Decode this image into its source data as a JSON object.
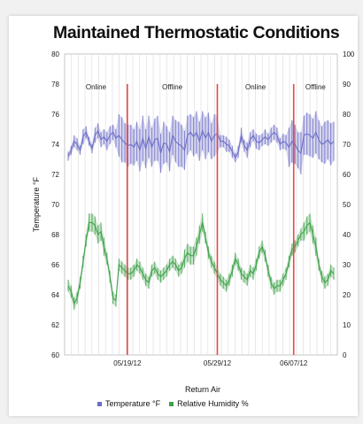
{
  "chart_data": {
    "type": "line",
    "title": "Maintained Thermostatic Conditions",
    "xlabel": "Return Air",
    "ylabel_left": "Temperature °F",
    "y_left_range": [
      60,
      80
    ],
    "y_left_ticks": [
      "80",
      "78",
      "76",
      "74",
      "72",
      "70",
      "68",
      "66",
      "64",
      "62",
      "60"
    ],
    "y_right_range": [
      0,
      100
    ],
    "y_right_ticks": [
      "100",
      "90",
      "80",
      "70",
      "60",
      "50",
      "40",
      "30",
      "20",
      "10",
      "0"
    ],
    "x_tick_labels": [
      "05/19/12",
      "05/29/12",
      "06/07/12"
    ],
    "grid": "vertical",
    "legend_position": "bottom",
    "status_periods": [
      {
        "label": "Online",
        "start": 0.0,
        "end": 0.23
      },
      {
        "label": "Offline",
        "start": 0.23,
        "end": 0.56
      },
      {
        "label": "Online",
        "start": 0.56,
        "end": 0.84
      },
      {
        "label": "Offline",
        "start": 0.84,
        "end": 1.0
      }
    ],
    "series": [
      {
        "name": "Temperature °F",
        "color": "#6e6ec8",
        "axis": "left",
        "values": [
          73.2,
          73.6,
          74.2,
          74.0,
          73.6,
          74.5,
          74.8,
          74.2,
          73.7,
          74.6,
          74.9,
          74.3,
          74.5,
          74.2,
          74.6,
          74.8,
          74.4,
          74.6,
          74.3,
          74.1,
          73.9,
          74.0,
          73.8,
          74.2,
          73.6,
          74.4,
          73.7,
          74.5,
          73.8,
          74.3,
          74.4,
          73.4,
          74.1,
          74.0,
          73.5,
          74.6,
          74.2,
          74.0,
          73.9,
          73.6,
          74.6,
          74.8,
          74.5,
          74.8,
          74.2,
          74.9,
          74.4,
          74.8,
          74.2,
          74.6,
          74.7,
          74.2,
          74.2,
          74.0,
          73.9,
          73.5,
          73.1,
          73.5,
          74.6,
          73.9,
          73.6,
          74.3,
          74.6,
          74.2,
          74.1,
          74.3,
          74.5,
          74.3,
          74.6,
          74.8,
          74.6,
          74.0,
          74.2,
          74.1,
          73.8,
          74.2,
          74.0,
          73.6,
          73.4,
          74.6,
          74.7,
          74.6,
          74.4,
          74.8,
          74.3,
          74.0,
          74.1,
          74.3,
          74.0,
          74.2
        ],
        "band": [
          0.3,
          0.3,
          0.4,
          0.4,
          0.3,
          0.5,
          0.4,
          0.3,
          0.3,
          0.5,
          0.5,
          0.5,
          0.5,
          0.6,
          0.6,
          0.5,
          0.6,
          1.4,
          1.5,
          1.3,
          1.4,
          1.3,
          1.2,
          1.3,
          1.4,
          1.5,
          1.3,
          1.4,
          1.3,
          1.4,
          1.5,
          1.3,
          1.4,
          1.2,
          1.3,
          1.3,
          1.4,
          1.5,
          1.4,
          1.3,
          1.3,
          1.2,
          1.3,
          1.4,
          1.3,
          1.3,
          1.4,
          1.3,
          1.2,
          1.4,
          1.2,
          0.4,
          0.4,
          0.5,
          0.4,
          0.4,
          0.3,
          0.4,
          0.5,
          0.4,
          0.5,
          0.5,
          0.4,
          0.5,
          0.5,
          0.4,
          0.5,
          0.4,
          0.5,
          0.5,
          0.5,
          0.4,
          0.5,
          0.5,
          1.3,
          1.4,
          1.3,
          1.2,
          1.4,
          1.3,
          1.4,
          1.4,
          1.3,
          1.4,
          1.3,
          1.2,
          1.4,
          1.3,
          1.4,
          1.3
        ]
      },
      {
        "name": "Relative Humidity %",
        "color": "#3fa24a",
        "axis": "right",
        "values": [
          23,
          21,
          17,
          19,
          24,
          31,
          38,
          44,
          44,
          43,
          40,
          41,
          36,
          32,
          26,
          19,
          18,
          30,
          29,
          28,
          27,
          27,
          28,
          30,
          29,
          27,
          25,
          24,
          28,
          29,
          27,
          26,
          27,
          28,
          30,
          31,
          30,
          28,
          29,
          32,
          34,
          33,
          33,
          36,
          40,
          44,
          39,
          34,
          31,
          29,
          27,
          25,
          24,
          23,
          25,
          28,
          32,
          30,
          27,
          26,
          25,
          28,
          27,
          30,
          34,
          36,
          33,
          28,
          24,
          22,
          23,
          23,
          25,
          27,
          31,
          35,
          36,
          38,
          40,
          41,
          43,
          44,
          40,
          36,
          30,
          26,
          24,
          25,
          28,
          27
        ],
        "band": [
          2,
          2,
          2,
          2,
          2,
          2,
          2,
          3,
          3,
          3,
          3,
          3,
          3,
          2,
          2,
          2,
          2,
          2,
          2,
          2,
          2,
          2,
          2,
          2,
          2,
          2,
          2,
          2,
          2,
          2,
          2,
          2,
          2,
          2,
          2,
          2,
          2,
          2,
          2,
          3,
          3,
          3,
          3,
          3,
          3,
          3,
          2,
          2,
          2,
          2,
          2,
          2,
          2,
          2,
          2,
          2,
          2,
          2,
          2,
          2,
          2,
          2,
          2,
          2,
          2,
          2,
          2,
          2,
          2,
          2,
          2,
          2,
          2,
          2,
          2,
          2,
          2,
          2,
          2,
          3,
          3,
          3,
          3,
          3,
          2,
          2,
          2,
          2,
          2,
          2
        ]
      }
    ]
  }
}
